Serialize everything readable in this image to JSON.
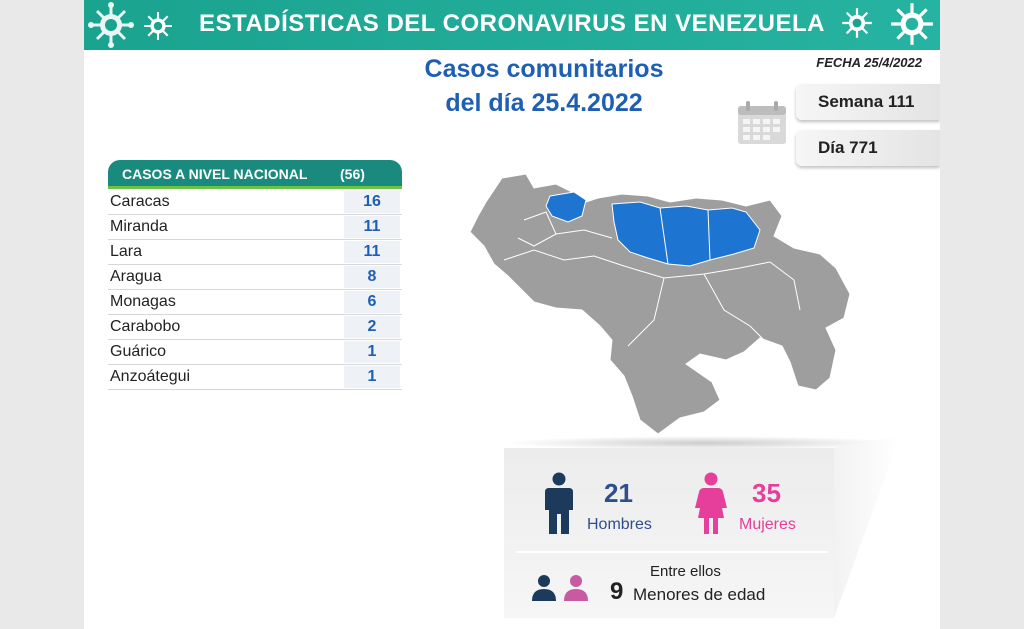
{
  "header": {
    "title": "ESTADÍSTICAS DEL CORONAVIRUS EN VENEZUELA"
  },
  "title": {
    "line1": "Casos comunitarios",
    "line2": "del día 25.4.2022"
  },
  "fecha": "FECHA 25/4/2022",
  "semana": "Semana 111",
  "dia": "Día 771",
  "table": {
    "header_label": "CASOS A NIVEL NACIONAL",
    "header_total": "(56)",
    "rows": [
      {
        "state": "Caracas",
        "value": "16"
      },
      {
        "state": "Miranda",
        "value": "11"
      },
      {
        "state": "Lara",
        "value": "11"
      },
      {
        "state": "Aragua",
        "value": "8"
      },
      {
        "state": "Monagas",
        "value": "6"
      },
      {
        "state": "Carabobo",
        "value": "2"
      },
      {
        "state": "Guárico",
        "value": "1"
      },
      {
        "state": "Anzoátegui",
        "value": "1"
      }
    ]
  },
  "stats": {
    "men_count": "21",
    "men_label": "Hombres",
    "women_count": "35",
    "women_label": "Mujeres",
    "among": "Entre ellos",
    "minors_count": "9",
    "minors_label": "Menores de edad"
  },
  "colors": {
    "header": "#1aa38f",
    "title_blue": "#1f5fb3",
    "highlight_state": "#1e74d1",
    "map_gray": "#9e9e9e",
    "men": "#1b3a5c",
    "women": "#e63e9b"
  },
  "icons": [
    "virus-icon",
    "calendar-icon",
    "man-icon",
    "woman-icon",
    "people-icon"
  ]
}
